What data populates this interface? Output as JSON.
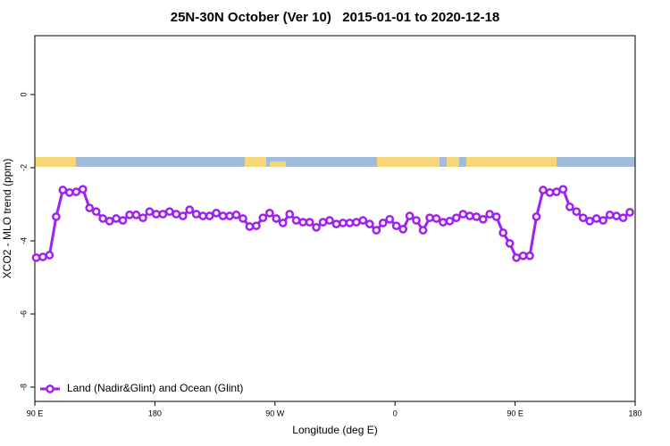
{
  "chart_data": {
    "type": "line",
    "title": "25N-30N October (Ver 10)   2015-01-01 to 2020-12-18",
    "xlabel": "Longitude (deg E)",
    "ylabel": "XCO2 - MLO trend (ppm)",
    "xlim": [
      90,
      540
    ],
    "ylim": [
      -8.39,
      1.61
    ],
    "xticks": [
      {
        "value": 90,
        "label": "90 E"
      },
      180,
      {
        "value": 270,
        "label": "90 W"
      },
      {
        "value": 360,
        "label": "0"
      },
      {
        "value": 450,
        "label": "90 E"
      },
      {
        "value": 540,
        "label": "180"
      }
    ],
    "yticks": [
      0,
      -2,
      -4,
      -6,
      -8
    ],
    "legend": "bottom-left",
    "x": [
      91,
      96,
      101,
      106,
      111,
      116,
      121,
      126,
      131,
      136,
      141,
      146,
      151,
      156,
      161,
      166,
      171,
      176,
      181,
      186,
      191,
      196,
      201,
      206,
      211,
      216,
      221,
      226,
      231,
      236,
      241,
      246,
      251,
      256,
      261,
      266,
      271,
      276,
      281,
      286,
      291,
      296,
      301,
      306,
      311,
      316,
      321,
      326,
      331,
      336,
      341,
      346,
      351,
      356,
      361,
      366,
      371,
      376,
      381,
      386,
      391,
      396,
      401,
      406,
      411,
      416,
      421,
      426,
      431,
      436,
      441,
      446,
      451,
      456,
      461,
      466,
      471,
      476,
      481,
      486,
      491,
      496,
      501,
      506,
      511,
      516,
      521,
      526,
      531,
      536
    ],
    "series": [
      {
        "name": "Land (Nadir&Glint) and Ocean (Glint)",
        "color": "#a020f0",
        "values": [
          -4.46,
          -4.44,
          -4.39,
          -3.34,
          -2.61,
          -2.68,
          -2.66,
          -2.59,
          -3.1,
          -3.2,
          -3.39,
          -3.46,
          -3.39,
          -3.44,
          -3.29,
          -3.29,
          -3.37,
          -3.2,
          -3.27,
          -3.27,
          -3.2,
          -3.27,
          -3.32,
          -3.15,
          -3.27,
          -3.32,
          -3.32,
          -3.24,
          -3.32,
          -3.32,
          -3.29,
          -3.39,
          -3.61,
          -3.59,
          -3.37,
          -3.24,
          -3.39,
          -3.51,
          -3.27,
          -3.44,
          -3.49,
          -3.49,
          -3.63,
          -3.49,
          -3.44,
          -3.54,
          -3.51,
          -3.51,
          -3.49,
          -3.44,
          -3.54,
          -3.71,
          -3.51,
          -3.41,
          -3.59,
          -3.68,
          -3.32,
          -3.44,
          -3.71,
          -3.37,
          -3.39,
          -3.49,
          -3.46,
          -3.37,
          -3.27,
          -3.32,
          -3.34,
          -3.41,
          -3.27,
          -3.34,
          -3.78,
          -4.07,
          -4.46,
          -4.41,
          -4.41,
          -3.34,
          -2.61,
          -2.68,
          -2.66,
          -2.59,
          -3.07,
          -3.2,
          -3.37,
          -3.46,
          -3.39,
          -3.44,
          -3.29,
          -3.32,
          -3.37,
          -3.22
        ]
      }
    ]
  }
}
